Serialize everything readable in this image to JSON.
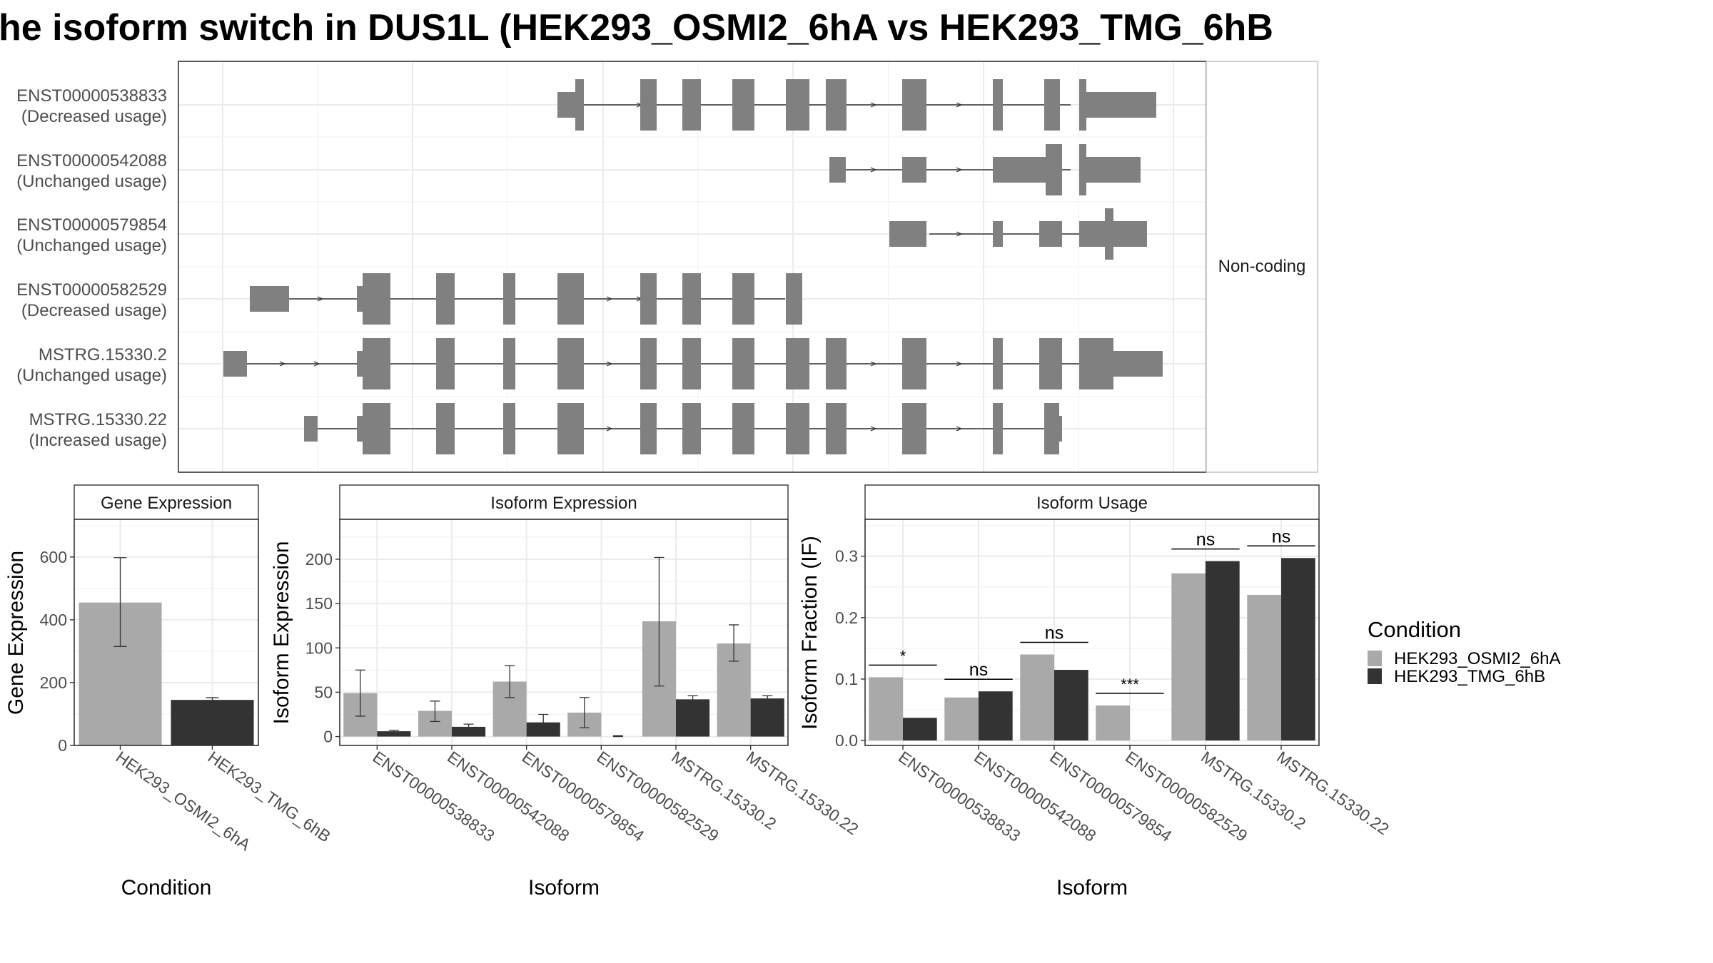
{
  "title": "he isoform switch in DUS1L (HEK293_OSMI2_6hA vs HEK293_TMG_6hB",
  "colors": {
    "condition_a": "#a9a9a9",
    "condition_b": "#333333",
    "exon": "#808080",
    "grid": "#ebebeb",
    "panel_border": "#333333",
    "strip_fill": "#ffffff"
  },
  "legend": {
    "title": "Condition",
    "items": [
      "HEK293_OSMI2_6hA",
      "HEK293_TMG_6hB"
    ]
  },
  "structure": {
    "strip_label": "Non-coding",
    "transcripts": [
      {
        "id": "ENST00000538833",
        "usage": "(Decreased usage)"
      },
      {
        "id": "ENST00000542088",
        "usage": "(Unchanged usage)"
      },
      {
        "id": "ENST00000579854",
        "usage": "(Unchanged usage)"
      },
      {
        "id": "ENST00000582529",
        "usage": "(Decreased usage)"
      },
      {
        "id": "MSTRG.15330.2",
        "usage": "(Unchanged usage)"
      },
      {
        "id": "MSTRG.15330.22",
        "usage": "(Increased usage)"
      }
    ]
  },
  "chart_data": [
    {
      "type": "bar",
      "title": "Gene Expression",
      "xlabel": "Condition",
      "ylabel": "Gene Expression",
      "categories": [
        "HEK293_OSMI2_6hA",
        "HEK293_TMG_6hB"
      ],
      "values": [
        455,
        145
      ],
      "error_low": [
        315,
        138
      ],
      "error_high": [
        598,
        152
      ],
      "ylim": [
        0,
        720
      ],
      "yticks": [
        0,
        200,
        400,
        600
      ],
      "grid": true
    },
    {
      "type": "bar",
      "title": "Isoform Expression",
      "xlabel": "Isoform",
      "ylabel": "Isoform Expression",
      "categories": [
        "ENST00000538833",
        "ENST00000542088",
        "ENST00000579854",
        "ENST00000582529",
        "MSTRG.15330.2",
        "MSTRG.15330.22"
      ],
      "series": [
        {
          "name": "HEK293_OSMI2_6hA",
          "values": [
            49,
            29,
            62,
            27,
            130,
            105
          ],
          "error_low": [
            23,
            17,
            44,
            10,
            57,
            85
          ],
          "error_high": [
            75,
            40,
            80,
            44,
            202,
            126
          ]
        },
        {
          "name": "HEK293_TMG_6hB",
          "values": [
            6,
            11,
            16,
            0,
            42,
            43
          ],
          "error_low": [
            4,
            8,
            8,
            0,
            38,
            40
          ],
          "error_high": [
            7,
            14,
            25,
            1,
            46,
            46
          ]
        }
      ],
      "ylim": [
        -10,
        245
      ],
      "yticks": [
        0,
        50,
        100,
        150,
        200
      ],
      "grid": true
    },
    {
      "type": "bar",
      "title": "Isoform Usage",
      "xlabel": "Isoform",
      "ylabel": "Isoform Fraction (IF)",
      "categories": [
        "ENST00000538833",
        "ENST00000542088",
        "ENST00000579854",
        "ENST00000582529",
        "MSTRG.15330.2",
        "MSTRG.15330.22"
      ],
      "series": [
        {
          "name": "HEK293_OSMI2_6hA",
          "values": [
            0.103,
            0.07,
            0.14,
            0.057,
            0.272,
            0.237
          ]
        },
        {
          "name": "HEK293_TMG_6hB",
          "values": [
            0.037,
            0.08,
            0.115,
            0.0,
            0.292,
            0.297
          ]
        }
      ],
      "significance": [
        "*",
        "ns",
        "ns",
        "***",
        "ns",
        "ns"
      ],
      "ylim": [
        -0.008,
        0.36
      ],
      "yticks": [
        "0.0",
        "0.1",
        "0.2",
        "0.3"
      ],
      "grid": true
    }
  ]
}
